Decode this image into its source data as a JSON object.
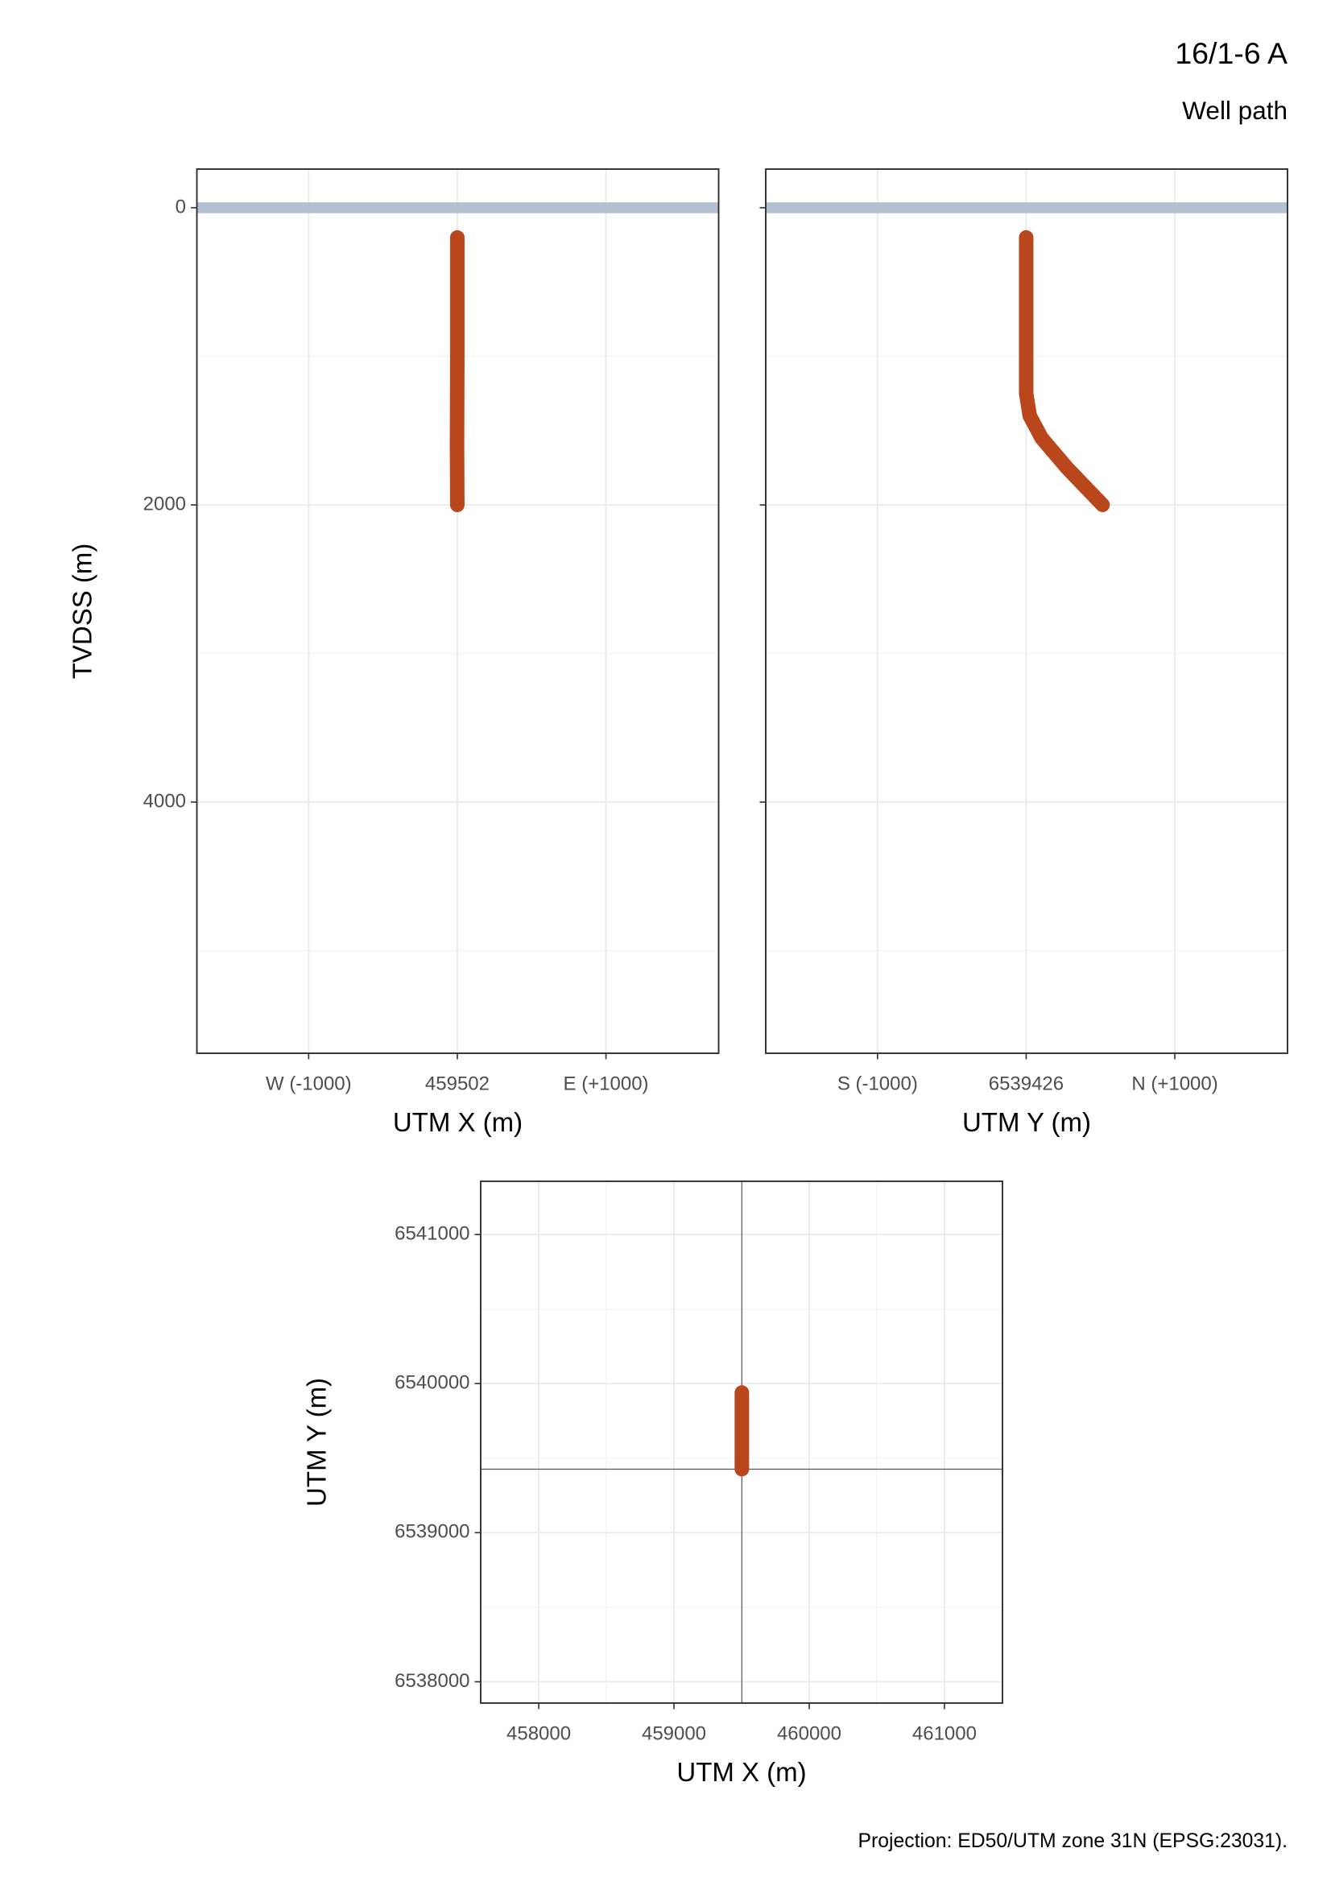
{
  "figure": {
    "title": "16/1-6 A",
    "subtitle": "Well path",
    "caption": "Projection: ED50/UTM zone 31N (EPSG:23031)."
  },
  "chart_data": [
    {
      "type": "line",
      "x_label": "UTM X (m)",
      "y_label": "TVDSS (m)",
      "xlim": [
        457750,
        461260
      ],
      "ylim": [
        5690,
        -260
      ],
      "xticks": [
        {
          "value": 458502,
          "label": "W (-1000)"
        },
        459502,
        {
          "value": 460502,
          "label": "E (+1000)"
        }
      ],
      "yticks": [
        0,
        2000,
        4000
      ],
      "yminor": [
        1000,
        3000,
        5000
      ],
      "ytick_labels": true,
      "grid": true,
      "hline": {
        "value": 0,
        "color": "#b3c0d2"
      },
      "color": "#b9471b",
      "x": [
        459502,
        459502,
        459500,
        459502
      ],
      "y": [
        200,
        1000,
        1600,
        2000
      ]
    },
    {
      "type": "line",
      "x_label": "UTM Y (m)",
      "xlim": [
        6537674,
        6541184
      ],
      "ylim": [
        5690,
        -260
      ],
      "xticks": [
        {
          "value": 6538426,
          "label": "S (-1000)"
        },
        6539426,
        {
          "value": 6540426,
          "label": "N (+1000)"
        }
      ],
      "yticks": [
        0,
        2000,
        4000
      ],
      "yminor": [
        1000,
        3000,
        5000
      ],
      "ytick_labels": false,
      "grid": true,
      "hline": {
        "value": 0,
        "color": "#b3c0d2"
      },
      "color": "#b9471b",
      "x": [
        6539426,
        6539426,
        6539450,
        6539530,
        6539700,
        6539940
      ],
      "y": [
        200,
        1250,
        1400,
        1550,
        1750,
        2000
      ]
    },
    {
      "type": "map",
      "x_label": "UTM X (m)",
      "y_label": "UTM Y (m)",
      "xlim": [
        457571,
        461429
      ],
      "ylim": [
        6537857,
        6541357
      ],
      "xticks": [
        458000,
        459000,
        460000,
        461000
      ],
      "xminor": [
        458500,
        459500,
        460500
      ],
      "yticks": [
        6538000,
        6539000,
        6540000,
        6541000
      ],
      "yminor": [
        6538500,
        6539500,
        6540500
      ],
      "ytick_labels": true,
      "grid": true,
      "crosshair": [
        459502,
        6539426
      ],
      "color": "#b9471b",
      "x": [
        459502,
        459502
      ],
      "y": [
        6539426,
        6539940
      ]
    }
  ]
}
